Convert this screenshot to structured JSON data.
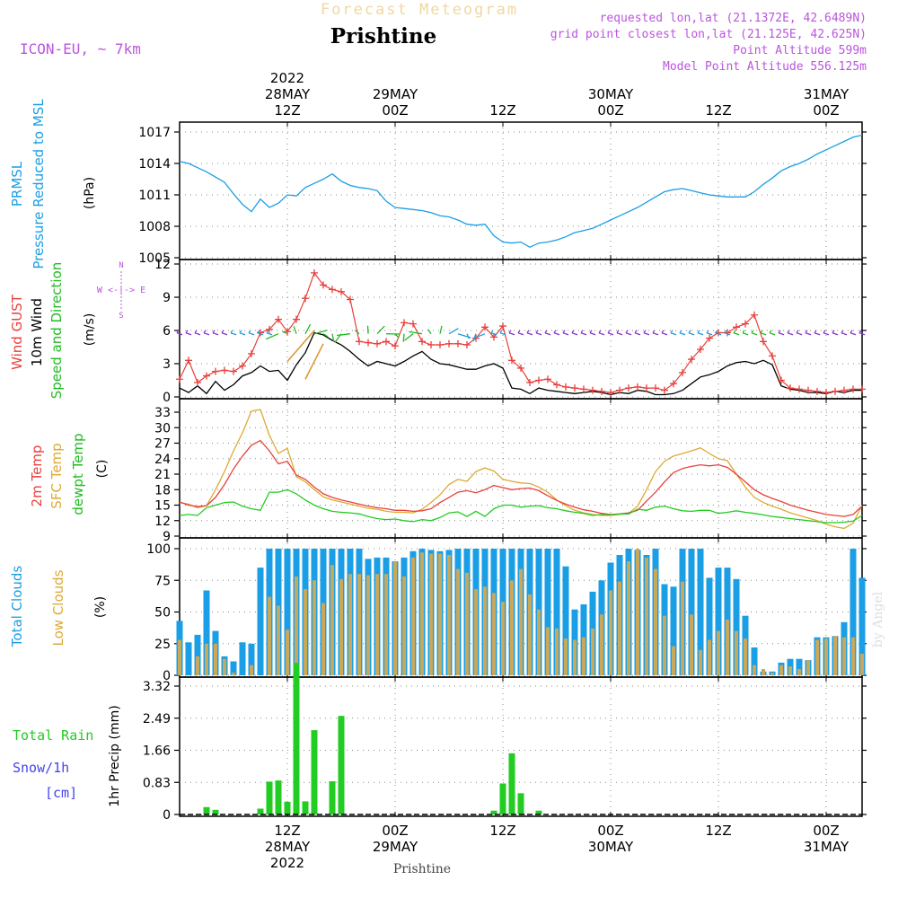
{
  "header": {
    "forecast_label": "Forecast Meteogram",
    "location": "Prishtine",
    "model": "ICON-EU, ~ 7km",
    "requested": "requested lon,lat (21.1372E, 42.6489N)",
    "grid_point": "grid point closest lon,lat (21.125E, 42.625N)",
    "point_altitude": "Point Altitude 599m",
    "model_altitude": "Model Point Altitude 556.125m",
    "footer_location": "Prishtine",
    "watermark": "by Angel"
  },
  "time_axis": {
    "ticks": [
      {
        "t": 12,
        "top": "12Z",
        "date": "28MAY",
        "year": "2022"
      },
      {
        "t": 24,
        "top": "00Z",
        "date": "29MAY",
        "year": ""
      },
      {
        "t": 36,
        "top": "12Z",
        "date": "",
        "year": ""
      },
      {
        "t": 48,
        "top": "00Z",
        "date": "30MAY",
        "year": ""
      },
      {
        "t": 60,
        "top": "12Z",
        "date": "",
        "year": ""
      },
      {
        "t": 72,
        "top": "00Z",
        "date": "31MAY",
        "year": ""
      }
    ]
  },
  "colors": {
    "pressure": "#1a9ee5",
    "gust": "#e8403c",
    "wind": "#000000",
    "dir": "#22bb22",
    "temp": "#e8403c",
    "sfc": "#ddaa33",
    "dewpt": "#22cc22",
    "total_cloud": "#1a9ee5",
    "low_cloud": "#c8a85a",
    "rain": "#22cc22",
    "label_purple": "#bb55dd",
    "snow": "#4444ee"
  },
  "chart_data": [
    {
      "type": "line",
      "ylabel_1": "PRMSL",
      "ylabel_2": "Pressure Reduced to MSL",
      "unit": "(hPa)",
      "ylim": [
        1005,
        1017.5
      ],
      "yticks": [
        1005,
        1008,
        1011,
        1014,
        1017
      ],
      "tick_labels": [
        "1005",
        "1008",
        "1011",
        "1014",
        "1017"
      ],
      "x_hours": [
        0,
        1,
        2,
        3,
        4,
        5,
        6,
        7,
        8,
        9,
        10,
        11,
        12,
        13,
        14,
        15,
        16,
        17,
        18,
        19,
        20,
        21,
        22,
        23,
        24,
        25,
        26,
        27,
        28,
        29,
        30,
        31,
        32,
        33,
        34,
        35,
        36,
        37,
        38,
        39,
        40,
        41,
        42,
        43,
        44,
        45,
        46,
        47,
        48,
        49,
        50,
        51,
        52,
        53,
        54,
        55,
        56,
        57,
        58,
        59,
        60,
        61,
        62,
        63,
        64,
        65,
        66,
        67,
        68,
        69,
        70,
        71,
        72,
        73,
        74,
        75,
        76
      ],
      "series": [
        {
          "name": "PRMSL",
          "values": [
            1014.2,
            1014.0,
            1013.6,
            1013.2,
            1012.7,
            1012.2,
            1011.1,
            1010.1,
            1009.4,
            1010.6,
            1009.8,
            1010.2,
            1011.0,
            1010.9,
            1011.7,
            1012.1,
            1012.5,
            1013.0,
            1012.3,
            1011.9,
            1011.7,
            1011.6,
            1011.4,
            1010.4,
            1009.8,
            1009.7,
            1009.6,
            1009.5,
            1009.3,
            1009.0,
            1008.9,
            1008.6,
            1008.2,
            1008.1,
            1008.2,
            1007.1,
            1006.5,
            1006.4,
            1006.5,
            1006.0,
            1006.4,
            1006.5,
            1006.7,
            1007.0,
            1007.4,
            1007.6,
            1007.8,
            1008.2,
            1008.6,
            1009.0,
            1009.4,
            1009.8,
            1010.3,
            1010.8,
            1011.3,
            1011.5,
            1011.6,
            1011.4,
            1011.2,
            1011.0,
            1010.9,
            1010.8,
            1010.8,
            1010.8,
            1011.3,
            1012.0,
            1012.6,
            1013.3,
            1013.7,
            1014.0,
            1014.4,
            1014.9,
            1015.3,
            1015.7,
            1016.1,
            1016.5,
            1016.7
          ]
        }
      ]
    },
    {
      "type": "line",
      "ylabel_1": "Wind GUST",
      "ylabel_2": "10m Wind",
      "ylabel_3": "Speed and Direction",
      "unit": "(m/s)",
      "compass": "W <-|-> E",
      "compass_n": "N",
      "compass_s": "S",
      "ylim": [
        0,
        12
      ],
      "yticks": [
        0,
        3,
        6,
        9,
        12
      ],
      "tick_labels": [
        "0",
        "3",
        "6",
        "9",
        "12"
      ],
      "gust": [
        1.6,
        3.3,
        1.3,
        1.9,
        2.3,
        2.4,
        2.3,
        2.8,
        3.9,
        5.8,
        6.1,
        7.0,
        5.9,
        7.0,
        8.9,
        11.2,
        10.1,
        9.7,
        9.5,
        8.8,
        5.0,
        4.9,
        4.8,
        5.0,
        4.6,
        6.7,
        6.6,
        5.0,
        4.7,
        4.7,
        4.8,
        4.8,
        4.7,
        5.3,
        6.3,
        5.4,
        6.4,
        3.3,
        2.6,
        1.3,
        1.5,
        1.6,
        1.1,
        0.9,
        0.8,
        0.7,
        0.6,
        0.5,
        0.4,
        0.6,
        0.8,
        0.9,
        0.8,
        0.8,
        0.6,
        1.2,
        2.2,
        3.4,
        4.3,
        5.3,
        5.8,
        5.8,
        6.3,
        6.6,
        7.4,
        5.0,
        3.7,
        1.5,
        0.8,
        0.7,
        0.6,
        0.5,
        0.4,
        0.5,
        0.6,
        0.7,
        0.7
      ],
      "wind": [
        0.8,
        0.4,
        1.0,
        0.3,
        1.4,
        0.6,
        1.1,
        1.9,
        2.2,
        2.8,
        2.3,
        2.4,
        1.5,
        2.9,
        4.0,
        5.8,
        5.6,
        5.1,
        4.7,
        4.1,
        3.4,
        2.8,
        3.2,
        3.0,
        2.8,
        3.2,
        3.7,
        4.1,
        3.4,
        3.0,
        2.9,
        2.7,
        2.5,
        2.5,
        2.8,
        3.0,
        2.6,
        0.8,
        0.7,
        0.3,
        0.8,
        0.6,
        0.5,
        0.4,
        0.3,
        0.4,
        0.5,
        0.4,
        0.2,
        0.4,
        0.3,
        0.6,
        0.5,
        0.2,
        0.2,
        0.3,
        0.6,
        1.2,
        1.8,
        2.0,
        2.3,
        2.8,
        3.1,
        3.2,
        3.0,
        3.3,
        2.9,
        1.0,
        0.7,
        0.6,
        0.4,
        0.4,
        0.3,
        0.5,
        0.4,
        0.6,
        0.6
      ]
    },
    {
      "type": "line",
      "ylabel_1": "2m Temp",
      "ylabel_2": "SFC Temp",
      "ylabel_3": "dewpt Temp",
      "unit": "(C)",
      "ylim": [
        9,
        34.5
      ],
      "yticks": [
        9,
        12,
        15,
        18,
        21,
        24,
        27,
        30,
        33
      ],
      "tick_labels": [
        "9",
        "12",
        "15",
        "18",
        "21",
        "24",
        "27",
        "30",
        "33"
      ],
      "series": [
        {
          "name": "2m Temp",
          "values": [
            15.6,
            15.0,
            14.7,
            14.9,
            16.5,
            19.0,
            22.0,
            24.5,
            26.6,
            27.5,
            25.5,
            23.0,
            23.5,
            20.8,
            20.0,
            18.5,
            17.2,
            16.5,
            16.0,
            15.6,
            15.2,
            14.8,
            14.5,
            14.3,
            14.0,
            14.0,
            13.8,
            13.9,
            14.3,
            15.5,
            16.5,
            17.5,
            17.8,
            17.4,
            18.0,
            18.8,
            18.4,
            18.0,
            18.2,
            18.3,
            17.8,
            16.8,
            15.9,
            15.2,
            14.6,
            14.1,
            13.8,
            13.4,
            13.2,
            13.3,
            13.5,
            14.0,
            15.8,
            17.5,
            19.5,
            21.3,
            22.1,
            22.5,
            22.8,
            22.6,
            22.8,
            22.3,
            21.0,
            19.5,
            18.0,
            17.0,
            16.3,
            15.7,
            15.0,
            14.5,
            14.0,
            13.6,
            13.2,
            13.0,
            12.8,
            13.2,
            14.8
          ]
        },
        {
          "name": "SFC Temp",
          "values": [
            15.5,
            15.2,
            14.5,
            14.9,
            18.0,
            21.5,
            25.5,
            29.0,
            33.2,
            33.5,
            28.5,
            25.0,
            26.0,
            20.5,
            19.5,
            18.0,
            16.6,
            16.0,
            15.6,
            15.2,
            14.8,
            14.4,
            14.2,
            13.8,
            13.6,
            13.6,
            13.5,
            14.2,
            15.5,
            17.0,
            19.0,
            20.0,
            19.6,
            21.5,
            22.2,
            21.6,
            20.0,
            19.6,
            19.3,
            19.2,
            18.5,
            17.5,
            16.0,
            14.9,
            14.0,
            13.5,
            13.2,
            13.0,
            13.0,
            13.2,
            13.4,
            14.8,
            18.0,
            21.5,
            23.5,
            24.5,
            25.0,
            25.5,
            26.1,
            25.0,
            24.0,
            23.6,
            21.0,
            18.5,
            16.5,
            15.5,
            14.8,
            14.2,
            13.5,
            13.0,
            12.5,
            12.0,
            11.3,
            10.8,
            10.5,
            11.5,
            15.0
          ]
        },
        {
          "name": "dewpt Temp",
          "values": [
            13.0,
            13.2,
            13.0,
            14.5,
            15.0,
            15.5,
            15.6,
            14.8,
            14.3,
            14.0,
            17.5,
            17.5,
            18.0,
            17.2,
            16.0,
            15.0,
            14.3,
            13.8,
            13.6,
            13.5,
            13.3,
            12.8,
            12.4,
            12.2,
            12.3,
            12.0,
            11.8,
            12.2,
            12.0,
            12.6,
            13.5,
            13.7,
            12.8,
            13.8,
            12.8,
            14.3,
            15.0,
            15.0,
            14.6,
            14.8,
            14.9,
            14.5,
            14.3,
            13.9,
            13.6,
            13.4,
            13.0,
            13.2,
            13.1,
            13.3,
            13.3,
            14.2,
            14.0,
            14.6,
            14.8,
            14.3,
            13.9,
            13.8,
            14.0,
            14.0,
            13.4,
            13.6,
            13.9,
            13.6,
            13.4,
            13.1,
            12.8,
            12.6,
            12.4,
            12.2,
            12.0,
            11.8,
            11.6,
            11.6,
            11.7,
            11.9,
            13.0
          ]
        }
      ]
    },
    {
      "type": "bar",
      "ylabel_1": "Total Clouds",
      "ylabel_2": "Low Clouds",
      "unit": "(%)",
      "ylim": [
        0,
        100
      ],
      "yticks": [
        0,
        25,
        50,
        75,
        100
      ],
      "tick_labels": [
        "0",
        "25",
        "50",
        "75",
        "100"
      ],
      "total": [
        43,
        26,
        32,
        67,
        35,
        15,
        11,
        26,
        25,
        85,
        100,
        100,
        100,
        100,
        100,
        100,
        100,
        100,
        100,
        100,
        100,
        92,
        93,
        93,
        90,
        93,
        98,
        100,
        99,
        98,
        99,
        100,
        100,
        100,
        100,
        100,
        100,
        100,
        100,
        100,
        100,
        100,
        100,
        86,
        52,
        56,
        66,
        75,
        89,
        95,
        100,
        99,
        95,
        100,
        72,
        70,
        100,
        100,
        100,
        77,
        85,
        85,
        76,
        47,
        22,
        3,
        3,
        10,
        13,
        13,
        12,
        30,
        30,
        31,
        42,
        100,
        77
      ],
      "low": [
        28,
        0,
        15,
        25,
        25,
        13,
        2,
        0,
        8,
        0,
        62,
        55,
        36,
        78,
        68,
        75,
        57,
        87,
        76,
        80,
        80,
        79,
        80,
        80,
        90,
        78,
        93,
        97,
        96,
        96,
        95,
        84,
        81,
        68,
        70,
        65,
        58,
        75,
        84,
        64,
        52,
        38,
        37,
        29,
        28,
        30,
        37,
        48,
        67,
        74,
        90,
        100,
        93,
        84,
        47,
        23,
        74,
        48,
        20,
        28,
        35,
        44,
        35,
        29,
        8,
        5,
        2,
        8,
        7,
        5,
        12,
        28,
        29,
        31,
        30,
        30,
        17
      ]
    },
    {
      "type": "bar",
      "ylabel_1": "Total  Rain",
      "ylabel_2": "Snow/1h",
      "ylabel_3": "[cm]",
      "ylabel_axis": "1hr Precip (mm)",
      "ylim": [
        0,
        4.15
      ],
      "yticks": [
        0,
        0.83,
        1.66,
        2.49,
        3.32
      ],
      "tick_labels": [
        "0",
        "0.83",
        "1.66",
        "2.49",
        "3.32"
      ],
      "rain": [
        0,
        0,
        0,
        0.19,
        0.12,
        0,
        0,
        0,
        0,
        0.15,
        0.85,
        0.88,
        0.33,
        3.92,
        0.34,
        2.18,
        0,
        0.86,
        2.55,
        0,
        0,
        0,
        0,
        0,
        0,
        0,
        0,
        0,
        0,
        0,
        0,
        0,
        0,
        0,
        0,
        0.1,
        0.8,
        1.58,
        0.55,
        0,
        0.1,
        0,
        0,
        0,
        0,
        0,
        0,
        0,
        0,
        0,
        0,
        0,
        0,
        0,
        0,
        0,
        0,
        0,
        0,
        0,
        0,
        0,
        0,
        0,
        0,
        0,
        0,
        0,
        0,
        0,
        0,
        0,
        0,
        0,
        0,
        0,
        0
      ]
    }
  ]
}
